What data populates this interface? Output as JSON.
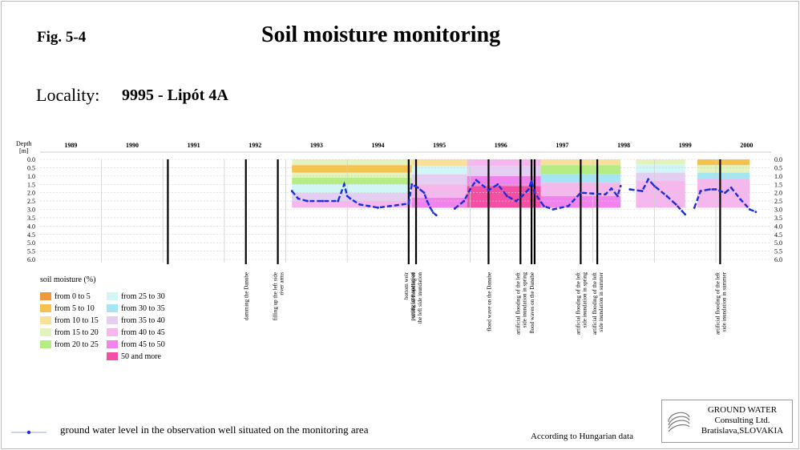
{
  "header": {
    "figure_label": "Fig. 5-4",
    "title": "Soil moisture monitoring",
    "locality_label": "Locality:",
    "locality_value": "9995 - Lipót 4A"
  },
  "chart_data": {
    "type": "heatmap",
    "ylabel": "Depth",
    "yunit": "[m]",
    "ylim": [
      0,
      6.0
    ],
    "y_ticks": [
      "0.0",
      "0.5",
      "1.0",
      "1.5",
      "2.0",
      "2.5",
      "3.0",
      "3.5",
      "4.0",
      "4.5",
      "5.0",
      "5.5",
      "6.0"
    ],
    "xlim": [
      1989,
      2000.9
    ],
    "x_ticks": [
      {
        "label": "1989",
        "x": 1989.5
      },
      {
        "label": "1990",
        "x": 1990.5
      },
      {
        "label": "1991",
        "x": 1991.5
      },
      {
        "label": "1992",
        "x": 1992.5
      },
      {
        "label": "1993",
        "x": 1993.5
      },
      {
        "label": "1994",
        "x": 1994.5
      },
      {
        "label": "1995",
        "x": 1995.5
      },
      {
        "label": "1996",
        "x": 1996.5
      },
      {
        "label": "1997",
        "x": 1997.5
      },
      {
        "label": "1998",
        "x": 1998.5
      },
      {
        "label": "1999",
        "x": 1999.5
      },
      {
        "label": "2000",
        "x": 2000.5
      }
    ],
    "year_grid": [
      1990,
      1991,
      1992,
      1993,
      1994,
      1995,
      1996,
      1997,
      1998,
      1999,
      2000
    ],
    "grid": true,
    "legend_title": "soil moisture (%)",
    "moisture_classes": [
      {
        "label": "from 0 to 5",
        "color": "#ee9a3c"
      },
      {
        "label": "from 5 to 10",
        "color": "#f5c14f"
      },
      {
        "label": "from 10 to 15",
        "color": "#f8df9a"
      },
      {
        "label": "from 15 to 20",
        "color": "#e2f3bd"
      },
      {
        "label": "from 20 to 25",
        "color": "#b6ec84"
      },
      {
        "label": "from 25 to 30",
        "color": "#d2f6f6"
      },
      {
        "label": "from 30 to 35",
        "color": "#a6e6f3"
      },
      {
        "label": "from 35 to 40",
        "color": "#e4cff3"
      },
      {
        "label": "from 40 to 45",
        "color": "#f6b7ee"
      },
      {
        "label": "from 45 to 50",
        "color": "#f183ec"
      },
      {
        "label": "50 and more",
        "color": "#f24fa5"
      }
    ],
    "heatmap_blocks": [
      {
        "x0": 1993.1,
        "x1": 1995.05,
        "bands": [
          {
            "d0": 0.0,
            "d1": 0.35,
            "c": 3
          },
          {
            "d0": 0.35,
            "d1": 0.8,
            "c": 1
          },
          {
            "d0": 0.8,
            "d1": 1.1,
            "c": 3
          },
          {
            "d0": 1.1,
            "d1": 1.5,
            "c": 4
          },
          {
            "d0": 1.5,
            "d1": 2.0,
            "c": 5
          },
          {
            "d0": 2.0,
            "d1": 2.5,
            "c": 7
          },
          {
            "d0": 2.5,
            "d1": 2.9,
            "c": 8
          }
        ]
      },
      {
        "x0": 1995.05,
        "x1": 1995.95,
        "bands": [
          {
            "d0": 0.0,
            "d1": 0.4,
            "c": 2
          },
          {
            "d0": 0.4,
            "d1": 0.9,
            "c": 5
          },
          {
            "d0": 0.9,
            "d1": 1.5,
            "c": 7
          },
          {
            "d0": 1.5,
            "d1": 2.3,
            "c": 8
          },
          {
            "d0": 2.3,
            "d1": 2.9,
            "c": 9
          }
        ]
      },
      {
        "x0": 1995.95,
        "x1": 1997.15,
        "bands": [
          {
            "d0": 0.0,
            "d1": 0.4,
            "c": 8
          },
          {
            "d0": 0.4,
            "d1": 1.0,
            "c": 7
          },
          {
            "d0": 1.0,
            "d1": 1.6,
            "c": 9
          },
          {
            "d0": 1.6,
            "d1": 2.9,
            "c": 10
          }
        ]
      },
      {
        "x0": 1997.15,
        "x1": 1998.45,
        "bands": [
          {
            "d0": 0.0,
            "d1": 0.35,
            "c": 2
          },
          {
            "d0": 0.35,
            "d1": 0.9,
            "c": 4
          },
          {
            "d0": 0.9,
            "d1": 1.4,
            "c": 6
          },
          {
            "d0": 1.4,
            "d1": 2.2,
            "c": 8
          },
          {
            "d0": 2.2,
            "d1": 2.9,
            "c": 9
          }
        ]
      },
      {
        "x0": 1998.7,
        "x1": 1999.5,
        "bands": [
          {
            "d0": 0.0,
            "d1": 0.3,
            "c": 3
          },
          {
            "d0": 0.3,
            "d1": 0.8,
            "c": 5
          },
          {
            "d0": 0.8,
            "d1": 1.3,
            "c": 7
          },
          {
            "d0": 1.3,
            "d1": 2.9,
            "c": 8
          }
        ]
      },
      {
        "x0": 1999.7,
        "x1": 2000.55,
        "bands": [
          {
            "d0": 0.0,
            "d1": 0.35,
            "c": 1
          },
          {
            "d0": 0.35,
            "d1": 0.8,
            "c": 3
          },
          {
            "d0": 0.8,
            "d1": 1.2,
            "c": 6
          },
          {
            "d0": 1.2,
            "d1": 2.9,
            "c": 8
          }
        ]
      }
    ],
    "groundwater_series": {
      "name": "ground water level in the observation well situated on the monitoring area",
      "color": "#1a2fd8",
      "segments": [
        {
          "x": [
            1993.1,
            1993.2,
            1993.35,
            1993.6,
            1993.85,
            1993.95,
            1994.0,
            1994.05,
            1994.2,
            1994.35,
            1994.5,
            1994.7,
            1994.9,
            1995.0,
            1995.05,
            1995.15,
            1995.25,
            1995.3,
            1995.35,
            1995.4,
            1995.45
          ],
          "y": [
            1.9,
            2.35,
            2.5,
            2.5,
            2.5,
            1.5,
            2.2,
            2.35,
            2.7,
            2.8,
            2.9,
            2.8,
            2.7,
            2.65,
            1.5,
            1.7,
            2.0,
            2.5,
            2.9,
            3.2,
            3.35
          ]
        },
        {
          "x": [
            1995.75,
            1995.9,
            1996.0,
            1996.1,
            1996.3,
            1996.45,
            1996.6,
            1996.75,
            1996.85,
            1996.95,
            1997.0,
            1997.05,
            1997.2,
            1997.35,
            1997.6,
            1997.8,
            1998.0,
            1998.2,
            1998.3,
            1998.4,
            1998.45
          ],
          "y": [
            2.95,
            2.5,
            1.8,
            1.25,
            1.85,
            1.5,
            2.2,
            2.5,
            2.2,
            1.8,
            1.3,
            2.0,
            2.8,
            3.0,
            2.8,
            2.0,
            2.05,
            2.1,
            1.75,
            2.2,
            1.6
          ]
        },
        {
          "x": [
            1998.6,
            1998.8,
            1998.9,
            1999.0,
            1999.2,
            1999.35,
            1999.45,
            1999.5
          ],
          "y": [
            1.8,
            1.9,
            1.2,
            1.6,
            2.2,
            2.7,
            3.1,
            3.3
          ]
        },
        {
          "x": [
            1999.65,
            1999.75,
            1999.9,
            2000.0,
            2000.15,
            2000.25,
            2000.4,
            2000.55,
            2000.65
          ],
          "y": [
            2.9,
            1.9,
            1.8,
            1.8,
            2.0,
            1.7,
            2.4,
            3.0,
            3.15
          ]
        }
      ]
    },
    "events": [
      {
        "x": 1991.08,
        "label": ""
      },
      {
        "x": 1992.35,
        "label": "damming the Danube"
      },
      {
        "x": 1992.87,
        "label": "filling up the left side\nriver arms"
      },
      {
        "x": 1995.0,
        "label": "bottom weir\nputting into operation"
      },
      {
        "x": 1995.12,
        "label": "artificial flooding of\nthe left side inundation"
      },
      {
        "x": 1996.3,
        "label": "flood wave on the Danube"
      },
      {
        "x": 1996.82,
        "label": "artificial flooding of the left\nside inundation in spring"
      },
      {
        "x": 1997.0,
        "label": "flood waves on the Danube"
      },
      {
        "x": 1997.05,
        "label": ""
      },
      {
        "x": 1997.8,
        "label": "artificial flooding of the left\nside inundation in spring"
      },
      {
        "x": 1998.07,
        "label": "artificial flooding of the left\nside inundation in summer"
      },
      {
        "x": 2000.07,
        "label": "artificial flooding of the left\nside inundation in summer"
      }
    ]
  },
  "legend": {
    "groundwater_text": "ground water level in the observation well situated on the monitoring area"
  },
  "footer": {
    "source_note": "According to Hungarian data",
    "company_line1": "GROUND WATER",
    "company_line2": "Consulting Ltd.",
    "company_line3": "Bratislava,SLOVAKIA"
  }
}
